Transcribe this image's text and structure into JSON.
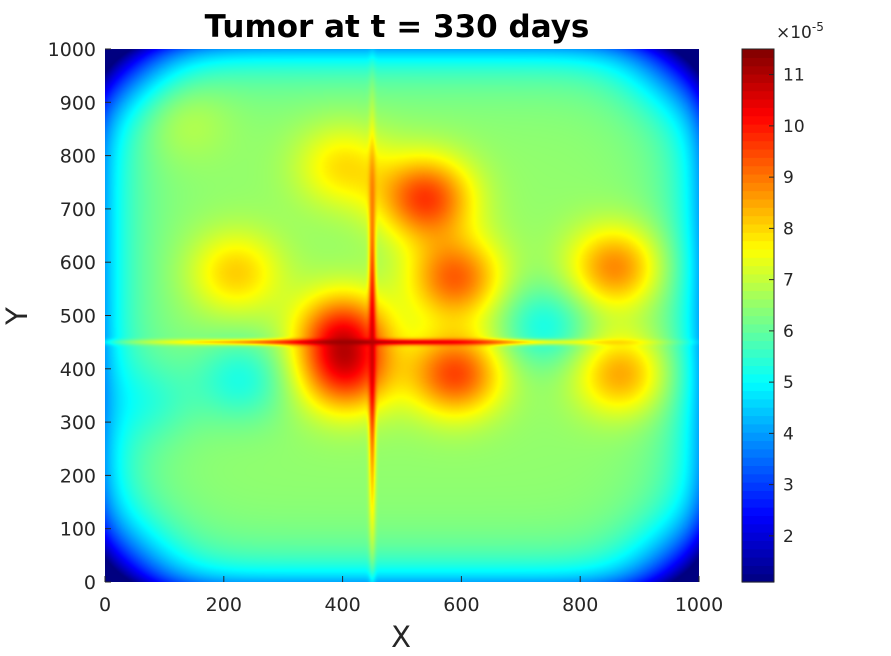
{
  "chart_data": {
    "type": "heatmap",
    "title": "Tumor at t = 330 days",
    "xlabel": "X",
    "ylabel": "Y",
    "xlim": [
      0,
      1000
    ],
    "ylim": [
      0,
      1000
    ],
    "xticks": [
      0,
      200,
      400,
      600,
      800,
      1000
    ],
    "yticks": [
      0,
      100,
      200,
      300,
      400,
      500,
      600,
      700,
      800,
      900,
      1000
    ],
    "colormap": "jet",
    "colorbar": {
      "range": [
        1.1,
        11.5
      ],
      "ticks": [
        2,
        3,
        4,
        5,
        6,
        7,
        8,
        9,
        10,
        11
      ],
      "multiplier": "×10",
      "exponent": "-5"
    },
    "background_level": 6.5,
    "features": [
      {
        "x": 400,
        "y": 470,
        "value": 9.5
      },
      {
        "x": 405,
        "y": 390,
        "value": 9.3
      },
      {
        "x": 540,
        "y": 720,
        "value": 9.6
      },
      {
        "x": 590,
        "y": 570,
        "value": 9.2
      },
      {
        "x": 590,
        "y": 390,
        "value": 9.5
      },
      {
        "x": 860,
        "y": 590,
        "value": 8.9
      },
      {
        "x": 870,
        "y": 390,
        "value": 8.6
      },
      {
        "x": 220,
        "y": 580,
        "value": 8.1
      },
      {
        "x": 400,
        "y": 780,
        "value": 7.9
      },
      {
        "x": 130,
        "y": 870,
        "value": 7.1
      },
      {
        "x": 230,
        "y": 380,
        "value": 5.3
      },
      {
        "x": 740,
        "y": 480,
        "value": 5.2
      },
      {
        "x": 80,
        "y": 340,
        "value": 5.8
      }
    ],
    "lines": [
      {
        "orientation": "horizontal",
        "at": 450,
        "from": 0,
        "to": 1000,
        "peak": 11.3
      },
      {
        "orientation": "vertical",
        "at": 450,
        "from": 0,
        "to": 1000,
        "peak": 10.9
      }
    ]
  }
}
